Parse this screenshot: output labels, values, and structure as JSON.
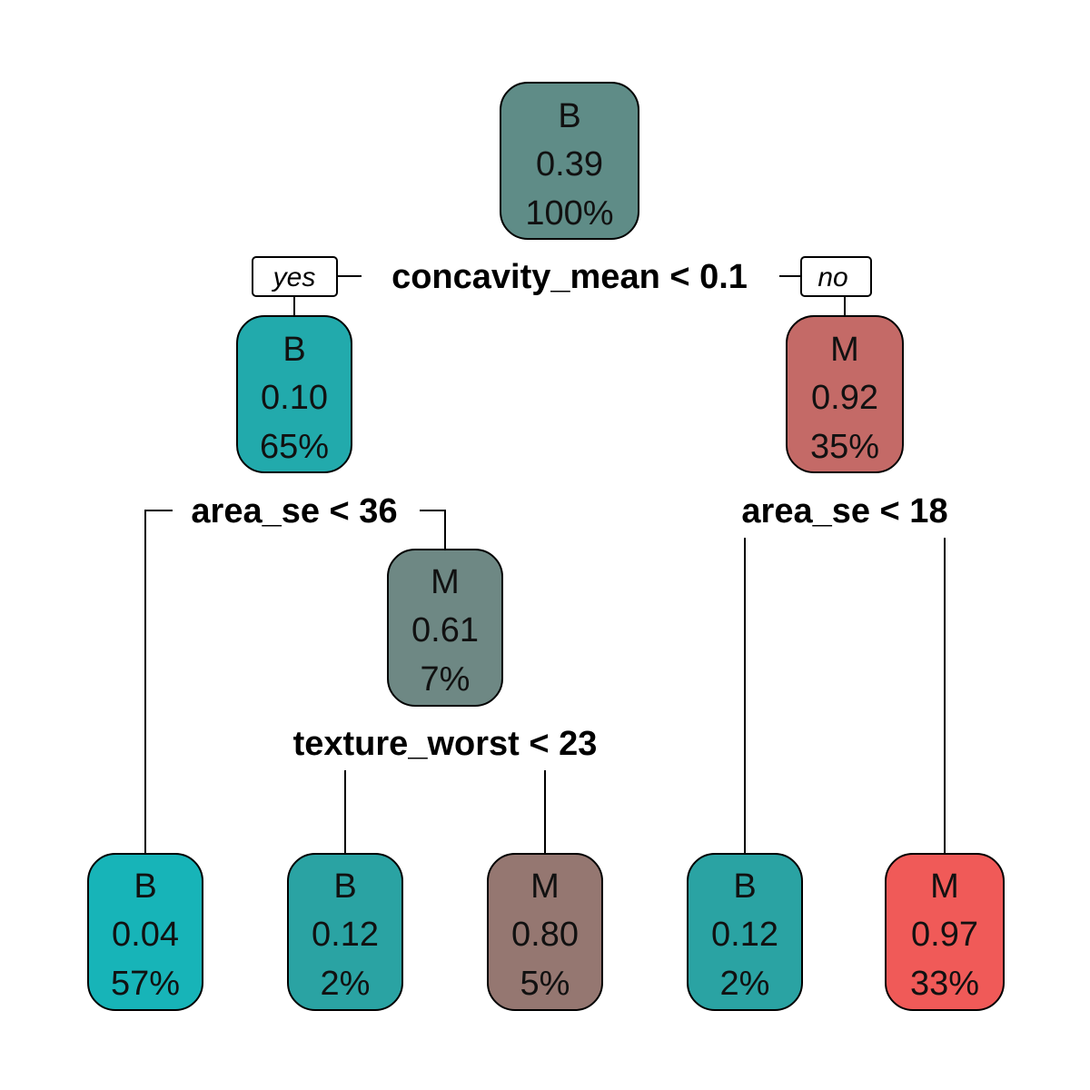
{
  "tree": {
    "branch_labels": {
      "yes": "yes",
      "no": "no"
    },
    "nodes": [
      {
        "id": "root",
        "class": "B",
        "prob": "0.39",
        "pct": "100%",
        "color": "#5f8c87"
      },
      {
        "id": "n2",
        "class": "B",
        "prob": "0.10",
        "pct": "65%",
        "color": "#22aaac"
      },
      {
        "id": "n3",
        "class": "M",
        "prob": "0.92",
        "pct": "35%",
        "color": "#c46a67"
      },
      {
        "id": "n5",
        "class": "M",
        "prob": "0.61",
        "pct": "7%",
        "color": "#6e8884"
      },
      {
        "id": "leaf1",
        "class": "B",
        "prob": "0.04",
        "pct": "57%",
        "color": "#17b4b8"
      },
      {
        "id": "leaf2",
        "class": "B",
        "prob": "0.12",
        "pct": "2%",
        "color": "#2aa3a3"
      },
      {
        "id": "leaf3",
        "class": "M",
        "prob": "0.80",
        "pct": "5%",
        "color": "#957771"
      },
      {
        "id": "leaf4",
        "class": "B",
        "prob": "0.12",
        "pct": "2%",
        "color": "#2aa3a3"
      },
      {
        "id": "leaf5",
        "class": "M",
        "prob": "0.97",
        "pct": "33%",
        "color": "#f05a58"
      }
    ],
    "splits": [
      {
        "id": "s_root",
        "label": "concavity_mean < 0.1"
      },
      {
        "id": "s_n2",
        "label": "area_se < 36"
      },
      {
        "id": "s_n3",
        "label": "area_se < 18"
      },
      {
        "id": "s_n5",
        "label": "texture_worst < 23"
      }
    ]
  }
}
